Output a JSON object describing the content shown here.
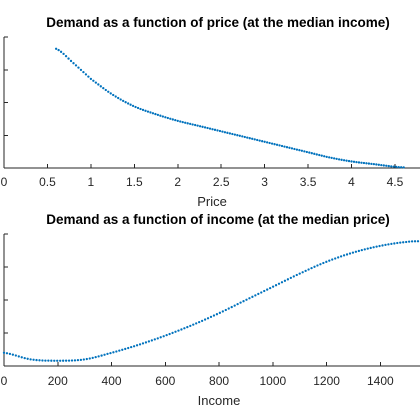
{
  "chart_data": [
    {
      "type": "scatter",
      "title": "Demand as a function of price (at the median income)",
      "xlabel": "Price",
      "ylabel": "",
      "xlim": [
        0,
        4.65
      ],
      "ylim": [
        0,
        1
      ],
      "xticks": [
        0,
        0.5,
        1,
        1.5,
        2,
        2.5,
        3,
        3.5,
        4,
        4.5
      ],
      "xtick_labels": [
        "0",
        "0.5",
        "1",
        "1.5",
        "2",
        "2.5",
        "3",
        "3.5",
        "4",
        "4.5"
      ],
      "yticks": [
        0,
        0.25,
        0.5,
        0.75,
        1
      ],
      "grid": false,
      "marker_color": "#0072BD",
      "series": [
        {
          "x": [
            0.6,
            0.8,
            1.0,
            1.25,
            1.5,
            1.75,
            2.0,
            2.25,
            2.5,
            2.75,
            3.0,
            3.25,
            3.5,
            3.75,
            4.0,
            4.25,
            4.5,
            4.6
          ],
          "y": [
            0.91,
            0.8,
            0.68,
            0.56,
            0.47,
            0.41,
            0.36,
            0.32,
            0.28,
            0.24,
            0.2,
            0.16,
            0.12,
            0.08,
            0.05,
            0.03,
            0.01,
            0.005
          ]
        }
      ]
    },
    {
      "type": "scatter",
      "title": "Demand as a function of income (at the median price)",
      "xlabel": "Income",
      "ylabel": "",
      "xlim": [
        0,
        1540
      ],
      "ylim": [
        0,
        1
      ],
      "xticks": [
        0,
        200,
        400,
        600,
        800,
        1000,
        1200,
        1400
      ],
      "xtick_labels": [
        "0",
        "200",
        "400",
        "600",
        "800",
        "1000",
        "1200",
        "1400"
      ],
      "yticks": [
        0,
        0.25,
        0.5,
        0.75,
        1
      ],
      "grid": false,
      "marker_color": "#0072BD",
      "series": [
        {
          "x": [
            0,
            100,
            200,
            300,
            400,
            500,
            600,
            700,
            800,
            900,
            1000,
            1100,
            1200,
            1300,
            1400,
            1500,
            1540
          ],
          "y": [
            0.1,
            0.05,
            0.04,
            0.05,
            0.1,
            0.16,
            0.23,
            0.31,
            0.4,
            0.5,
            0.6,
            0.7,
            0.79,
            0.86,
            0.91,
            0.94,
            0.945
          ]
        }
      ]
    }
  ]
}
